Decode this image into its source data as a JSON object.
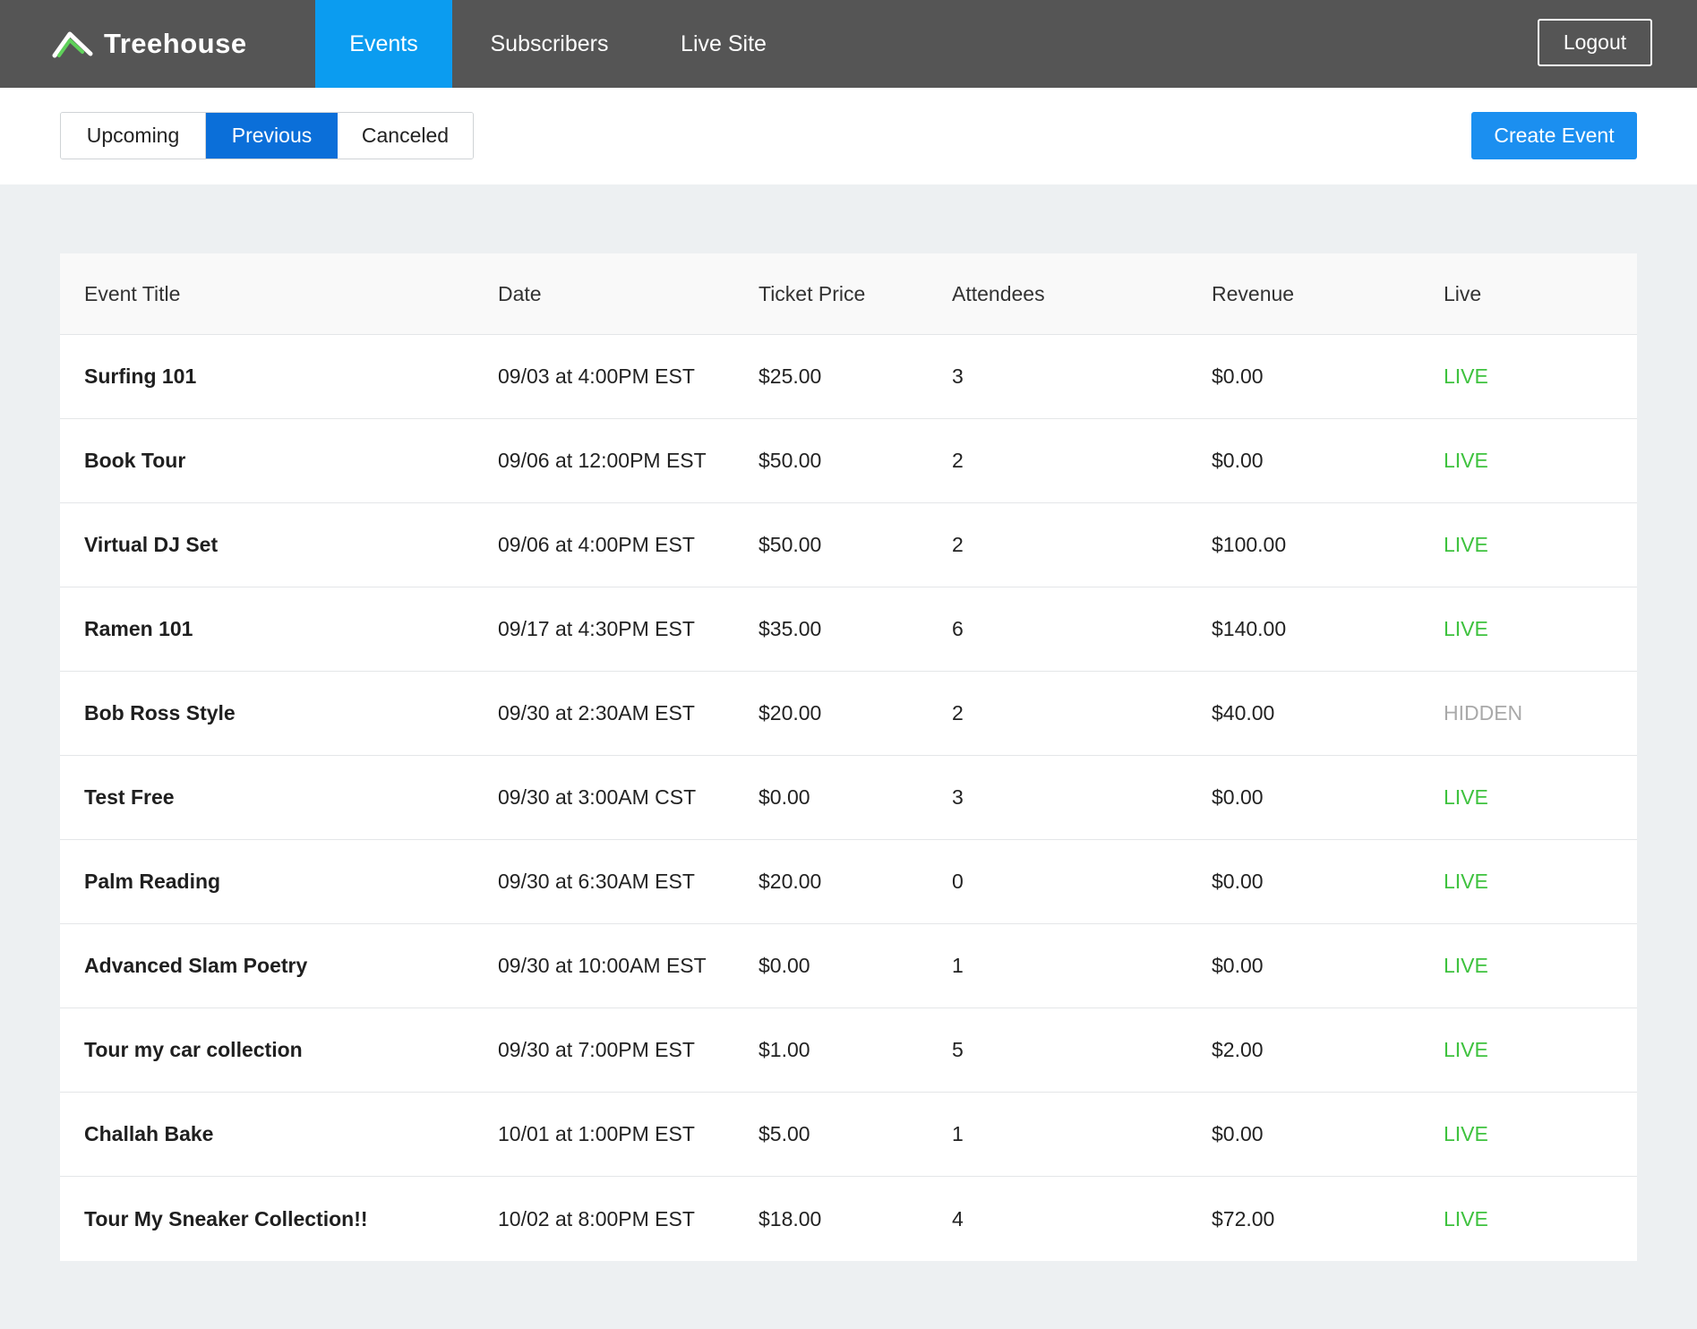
{
  "header": {
    "brand": "Treehouse",
    "nav": [
      {
        "label": "Events",
        "active": true
      },
      {
        "label": "Subscribers",
        "active": false
      },
      {
        "label": "Live Site",
        "active": false
      }
    ],
    "logout_label": "Logout"
  },
  "filters": {
    "tabs": [
      {
        "label": "Upcoming",
        "active": false
      },
      {
        "label": "Previous",
        "active": true
      },
      {
        "label": "Canceled",
        "active": false
      }
    ],
    "create_label": "Create Event"
  },
  "table": {
    "columns": [
      "Event Title",
      "Date",
      "Ticket Price",
      "Attendees",
      "Revenue",
      "Live"
    ],
    "rows": [
      {
        "title": "Surfing 101",
        "date": "09/03 at 4:00PM EST",
        "price": "$25.00",
        "attendees": "3",
        "revenue": "$0.00",
        "status": "LIVE"
      },
      {
        "title": "Book Tour",
        "date": "09/06 at 12:00PM EST",
        "price": "$50.00",
        "attendees": "2",
        "revenue": "$0.00",
        "status": "LIVE"
      },
      {
        "title": "Virtual DJ Set",
        "date": "09/06 at 4:00PM EST",
        "price": "$50.00",
        "attendees": "2",
        "revenue": "$100.00",
        "status": "LIVE"
      },
      {
        "title": "Ramen 101",
        "date": "09/17 at 4:30PM EST",
        "price": "$35.00",
        "attendees": "6",
        "revenue": "$140.00",
        "status": "LIVE"
      },
      {
        "title": "Bob Ross Style",
        "date": "09/30 at 2:30AM EST",
        "price": "$20.00",
        "attendees": "2",
        "revenue": "$40.00",
        "status": "HIDDEN"
      },
      {
        "title": "Test Free",
        "date": "09/30 at 3:00AM CST",
        "price": "$0.00",
        "attendees": "3",
        "revenue": "$0.00",
        "status": "LIVE"
      },
      {
        "title": "Palm Reading",
        "date": "09/30 at 6:30AM EST",
        "price": "$20.00",
        "attendees": "0",
        "revenue": "$0.00",
        "status": "LIVE"
      },
      {
        "title": "Advanced Slam Poetry",
        "date": "09/30 at 10:00AM EST",
        "price": "$0.00",
        "attendees": "1",
        "revenue": "$0.00",
        "status": "LIVE"
      },
      {
        "title": "Tour my car collection",
        "date": "09/30 at 7:00PM EST",
        "price": "$1.00",
        "attendees": "5",
        "revenue": "$2.00",
        "status": "LIVE"
      },
      {
        "title": "Challah Bake",
        "date": "10/01 at 1:00PM EST",
        "price": "$5.00",
        "attendees": "1",
        "revenue": "$0.00",
        "status": "LIVE"
      },
      {
        "title": "Tour My Sneaker Collection!!",
        "date": "10/02 at 8:00PM EST",
        "price": "$18.00",
        "attendees": "4",
        "revenue": "$72.00",
        "status": "LIVE"
      }
    ]
  },
  "colors": {
    "topbar": "#555555",
    "nav_active": "#0b9cf0",
    "filter_active": "#0b6fd9",
    "primary_button": "#1b8ff0",
    "status_live": "#3ec23e",
    "status_hidden": "#a9a9a9",
    "brand_logo": "#5fd15a"
  },
  "icons": {
    "brand_logo": "treehouse-logo-icon"
  }
}
